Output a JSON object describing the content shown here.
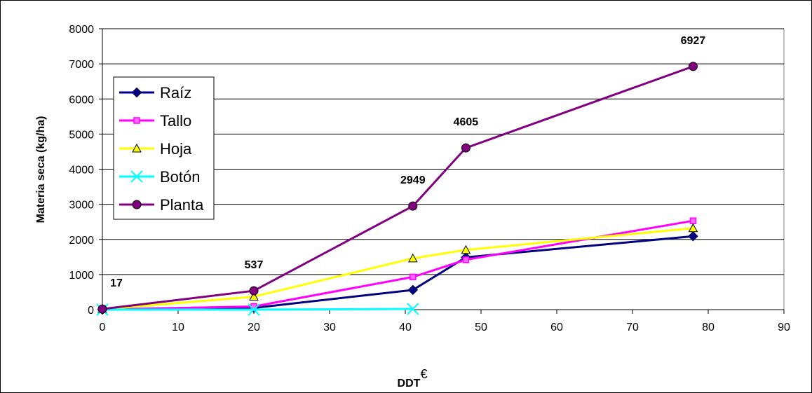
{
  "chart_data": {
    "type": "line",
    "xlabel": "DDT",
    "xlabel_superscript": "€",
    "ylabel": "Materia seca (kg/ha)",
    "xlim": [
      0,
      90
    ],
    "ylim": [
      0,
      8000
    ],
    "x_ticks": [
      0,
      10,
      20,
      30,
      40,
      50,
      60,
      70,
      80,
      90
    ],
    "y_ticks": [
      0,
      1000,
      2000,
      3000,
      4000,
      5000,
      6000,
      7000,
      8000
    ],
    "grid": "horizontal",
    "legend_position": "left",
    "series": [
      {
        "name": "Raíz",
        "color": "#000080",
        "marker": "diamond",
        "x": [
          0,
          20,
          41,
          48,
          78
        ],
        "y": [
          0,
          50,
          560,
          1490,
          2090
        ]
      },
      {
        "name": "Tallo",
        "color": "#FF00FF",
        "marker": "square",
        "x": [
          0,
          20,
          41,
          48,
          78
        ],
        "y": [
          5,
          90,
          930,
          1420,
          2530
        ]
      },
      {
        "name": "Hoja",
        "color": "#FFFF00",
        "marker": "triangle",
        "x": [
          0,
          20,
          41,
          48,
          78
        ],
        "y": [
          10,
          370,
          1460,
          1700,
          2320
        ]
      },
      {
        "name": "Botón",
        "color": "#00FFFF",
        "marker": "x",
        "x": [
          0,
          20,
          41
        ],
        "y": [
          0,
          0,
          20
        ]
      },
      {
        "name": "Planta",
        "color": "#800080",
        "marker": "circle",
        "x": [
          0,
          20,
          41,
          48,
          78
        ],
        "y": [
          17,
          537,
          2949,
          4605,
          6927
        ]
      }
    ],
    "data_labels": [
      "17",
      "537",
      "2949",
      "4605",
      "6927"
    ]
  }
}
